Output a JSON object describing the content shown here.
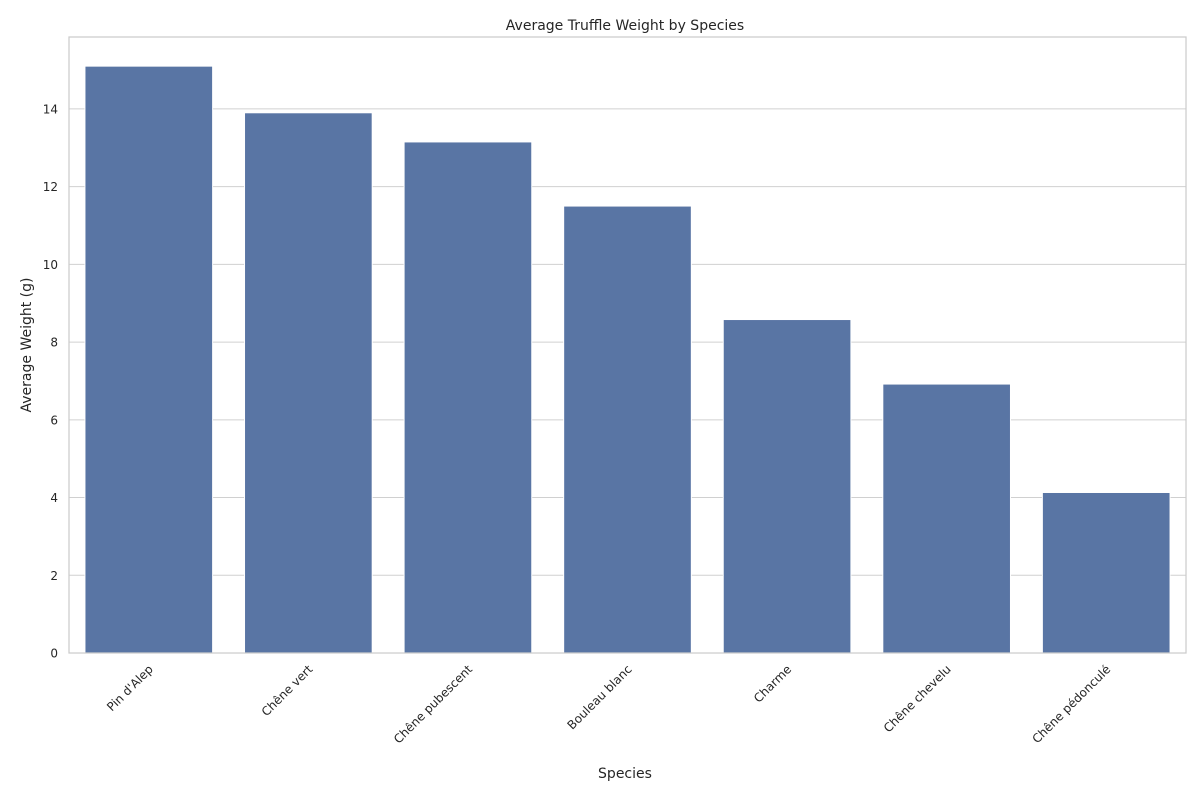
{
  "chart_data": {
    "type": "bar",
    "title": "Average Truffle Weight by Species",
    "xlabel": "Species",
    "ylabel": "Average Weight (g)",
    "categories": [
      "Pin d'Alep",
      "Chêne vert",
      "Chêne pubescent",
      "Bouleau blanc",
      "Charme",
      "Chêne chevelu",
      "Chêne pédonculé"
    ],
    "values": [
      15.1,
      13.9,
      13.15,
      11.5,
      8.58,
      6.92,
      4.13
    ],
    "ylim": [
      0,
      15.85
    ],
    "yticks": [
      0,
      2,
      4,
      6,
      8,
      10,
      12,
      14
    ],
    "grid": "horizontal",
    "bar_color": "#5975a4",
    "x_tick_rotation": "45 degrees counter-clockwise"
  }
}
